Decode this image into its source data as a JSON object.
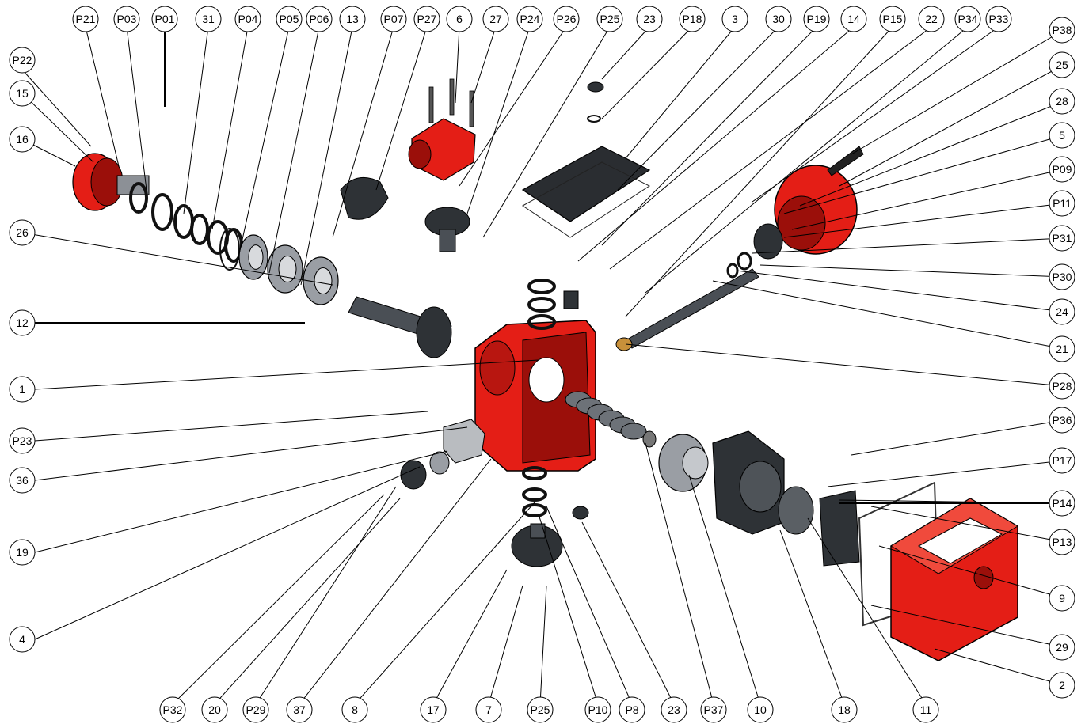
{
  "colors": {
    "housing_red": "#e41e16",
    "housing_red_dark": "#9b0f0a",
    "part_dark": "#2e3236",
    "part_mid": "#4a4f55",
    "part_light": "#8c9096",
    "leader": "#000000",
    "background": "#ffffff"
  },
  "callouts": {
    "top": [
      "P21",
      "P03",
      "P01",
      "31",
      "P04",
      "P05",
      "P06",
      "13",
      "P07",
      "P27",
      "6",
      "27",
      "P24",
      "P26",
      "P25",
      "23",
      "P18",
      "3",
      "30",
      "P19",
      "14",
      "P15",
      "22",
      "P34",
      "P33"
    ],
    "left": [
      "P22",
      "15",
      "16",
      "26",
      "12",
      "1",
      "P23",
      "36",
      "19",
      "4"
    ],
    "right": [
      "P38",
      "25",
      "28",
      "5",
      "P09",
      "P11",
      "P31",
      "P30",
      "24",
      "21",
      "P28",
      "P36",
      "P17",
      "P14",
      "P13",
      "9",
      "29",
      "2"
    ],
    "bottom": [
      "P32",
      "20",
      "P29",
      "37",
      "8",
      "17",
      "7",
      "P25",
      "P10",
      "P8",
      "23",
      "P37",
      "10",
      "18",
      "11"
    ]
  }
}
